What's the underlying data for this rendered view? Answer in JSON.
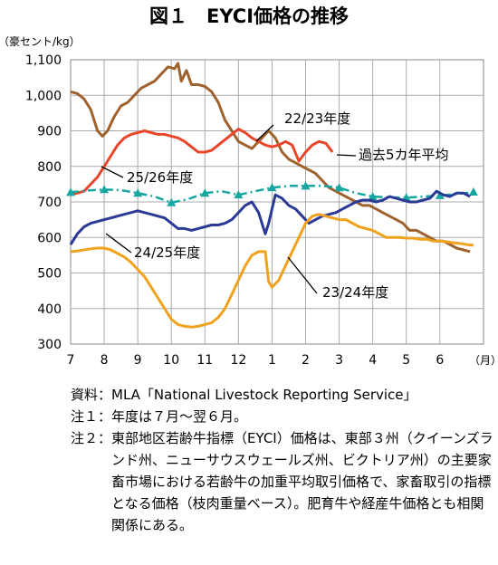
{
  "title": "図１　EYCI価格の推移",
  "chart_data": {
    "type": "line",
    "ylabel": "（豪セント/kg）",
    "xlabel": "（月）",
    "ylim": [
      300,
      1100
    ],
    "yticks": [
      300,
      400,
      500,
      600,
      700,
      800,
      900,
      1000,
      1100
    ],
    "ytick_labels": [
      "300",
      "400",
      "500",
      "600",
      "700",
      "800",
      "900",
      "1,000",
      "1,100"
    ],
    "xticks": [
      "7",
      "8",
      "9",
      "10",
      "11",
      "12",
      "1",
      "2",
      "3",
      "4",
      "5",
      "6"
    ],
    "grid": true,
    "series": [
      {
        "name": "22/23年度",
        "color": "#a0622d",
        "marker": "none",
        "x": [
          0,
          0.2,
          0.4,
          0.6,
          0.8,
          0.95,
          1.1,
          1.3,
          1.5,
          1.7,
          1.9,
          2.1,
          2.3,
          2.5,
          2.7,
          2.9,
          3.1,
          3.2,
          3.3,
          3.45,
          3.6,
          3.8,
          4.0,
          4.2,
          4.4,
          4.6,
          4.8,
          5.0,
          5.2,
          5.4,
          5.6,
          5.8,
          5.9,
          6.1,
          6.3,
          6.5,
          6.7,
          6.9,
          7.1,
          7.3,
          7.5,
          7.7,
          7.9,
          8.1,
          8.3,
          8.5,
          8.7,
          8.9,
          9.1,
          9.3,
          9.5,
          9.7,
          9.9,
          10.1,
          10.3,
          10.5,
          10.7,
          10.9,
          11.1,
          11.3,
          11.5,
          11.7,
          11.9
        ],
        "values": [
          1010,
          1005,
          990,
          960,
          900,
          885,
          900,
          940,
          970,
          980,
          1000,
          1020,
          1030,
          1040,
          1060,
          1080,
          1075,
          1090,
          1040,
          1070,
          1030,
          1030,
          1025,
          1010,
          980,
          930,
          900,
          870,
          860,
          850,
          870,
          890,
          900,
          880,
          840,
          820,
          810,
          800,
          790,
          780,
          760,
          740,
          730,
          720,
          710,
          700,
          690,
          690,
          680,
          670,
          660,
          650,
          640,
          620,
          620,
          610,
          600,
          590,
          590,
          580,
          570,
          565,
          560
        ]
      },
      {
        "name": "25/26年度",
        "color": "#e8462a",
        "marker": "none",
        "x": [
          0,
          0.2,
          0.4,
          0.6,
          0.8,
          1.0,
          1.2,
          1.4,
          1.6,
          1.8,
          2.0,
          2.2,
          2.4,
          2.6,
          2.8,
          3.0,
          3.2,
          3.4,
          3.6,
          3.8,
          4.0,
          4.2,
          4.4,
          4.6,
          4.8,
          5.0,
          5.2,
          5.4,
          5.6,
          5.8,
          6.0,
          6.2,
          6.4,
          6.6,
          6.8,
          7.0,
          7.2,
          7.4,
          7.6,
          7.8
        ],
        "values": [
          720,
          725,
          730,
          750,
          770,
          800,
          830,
          860,
          880,
          890,
          895,
          900,
          895,
          890,
          890,
          885,
          880,
          870,
          855,
          840,
          840,
          845,
          860,
          875,
          890,
          905,
          895,
          880,
          870,
          860,
          855,
          860,
          870,
          860,
          815,
          840,
          860,
          870,
          865,
          840
        ]
      },
      {
        "name": "過去5カ年平均",
        "color": "#17a6a0",
        "marker": "triangle",
        "x": [
          0,
          0.5,
          1.0,
          1.5,
          2.0,
          2.5,
          3.0,
          3.5,
          4.0,
          4.5,
          5.0,
          5.5,
          6.0,
          6.5,
          7.0,
          7.5,
          8.0,
          8.5,
          9.0,
          9.5,
          10.0,
          10.5,
          11.0,
          11.5,
          12.0
        ],
        "values": [
          727,
          732,
          735,
          733,
          725,
          715,
          698,
          708,
          725,
          730,
          720,
          730,
          740,
          745,
          745,
          745,
          740,
          725,
          715,
          713,
          712,
          715,
          718,
          722,
          728
        ]
      },
      {
        "name": "24/25年度",
        "color": "#2b3a96",
        "marker": "none",
        "x": [
          0,
          0.2,
          0.4,
          0.6,
          0.8,
          1.0,
          1.2,
          1.4,
          1.6,
          1.8,
          2.0,
          2.2,
          2.4,
          2.6,
          2.8,
          3.0,
          3.2,
          3.4,
          3.6,
          3.8,
          4.0,
          4.2,
          4.4,
          4.6,
          4.8,
          5.0,
          5.2,
          5.4,
          5.6,
          5.8,
          5.9,
          6.0,
          6.1,
          6.3,
          6.5,
          6.7,
          6.9,
          7.1,
          7.3,
          7.5,
          7.7,
          7.9,
          8.1,
          8.3,
          8.5,
          8.7,
          8.9,
          9.1,
          9.3,
          9.5,
          9.7,
          9.9,
          10.1,
          10.3,
          10.5,
          10.7,
          10.9,
          11.1,
          11.3,
          11.5,
          11.7,
          11.9
        ],
        "values": [
          580,
          610,
          630,
          640,
          645,
          650,
          655,
          660,
          665,
          670,
          675,
          670,
          665,
          660,
          655,
          640,
          625,
          625,
          620,
          625,
          630,
          635,
          635,
          640,
          650,
          670,
          690,
          700,
          670,
          610,
          640,
          680,
          720,
          710,
          690,
          680,
          660,
          640,
          650,
          660,
          665,
          670,
          680,
          690,
          700,
          705,
          705,
          700,
          705,
          715,
          710,
          705,
          700,
          700,
          705,
          710,
          730,
          720,
          715,
          725,
          725,
          715
        ]
      },
      {
        "name": "23/24年度",
        "color": "#f0a21e",
        "marker": "none",
        "x": [
          0,
          0.2,
          0.4,
          0.6,
          0.8,
          1.0,
          1.2,
          1.4,
          1.6,
          1.8,
          2.0,
          2.2,
          2.4,
          2.6,
          2.8,
          3.0,
          3.2,
          3.4,
          3.6,
          3.8,
          4.0,
          4.2,
          4.4,
          4.6,
          4.8,
          5.0,
          5.2,
          5.4,
          5.6,
          5.8,
          5.9,
          6.0,
          6.2,
          6.4,
          6.6,
          6.8,
          7.0,
          7.2,
          7.4,
          7.6,
          7.8,
          8.0,
          8.2,
          8.4,
          8.6,
          8.8,
          9.0,
          9.2,
          9.4,
          9.6,
          9.8,
          10.0,
          10.2,
          10.4,
          10.6,
          10.8,
          11.0,
          11.2,
          11.4,
          11.6,
          11.8,
          12.0
        ],
        "values": [
          560,
          562,
          565,
          568,
          570,
          570,
          565,
          555,
          545,
          530,
          510,
          490,
          460,
          430,
          400,
          370,
          355,
          350,
          348,
          350,
          355,
          360,
          375,
          400,
          440,
          480,
          520,
          550,
          560,
          560,
          475,
          460,
          480,
          520,
          560,
          600,
          640,
          660,
          665,
          660,
          655,
          650,
          650,
          640,
          630,
          625,
          620,
          610,
          600,
          600,
          600,
          598,
          598,
          595,
          595,
          590,
          590,
          588,
          585,
          583,
          580,
          578
        ]
      }
    ],
    "annotations": [
      {
        "text": "22/23年度",
        "series": "22/23年度"
      },
      {
        "text": "25/26年度",
        "series": "25/26年度"
      },
      {
        "text": "過去5カ年平均",
        "series": "過去5カ年平均"
      },
      {
        "text": "24/25年度",
        "series": "24/25年度"
      },
      {
        "text": "23/24年度",
        "series": "23/24年度"
      }
    ]
  },
  "notes": [
    {
      "label": "資料：",
      "text": "MLA「National Livestock Reporting Service」"
    },
    {
      "label": "注１：",
      "text": "年度は７月～翌６月。"
    },
    {
      "label": "注２：",
      "text": "東部地区若齢牛指標（EYCI）価格は、東部３州（クイーンズランド州、ニューサウスウェールズ州、ビクトリア州）の主要家畜市場における若齢牛の加重平均取引価格で、家畜取引の指標となる価格（枝肉重量ベース）。肥育牛や経産牛価格とも相関関係にある。"
    }
  ]
}
